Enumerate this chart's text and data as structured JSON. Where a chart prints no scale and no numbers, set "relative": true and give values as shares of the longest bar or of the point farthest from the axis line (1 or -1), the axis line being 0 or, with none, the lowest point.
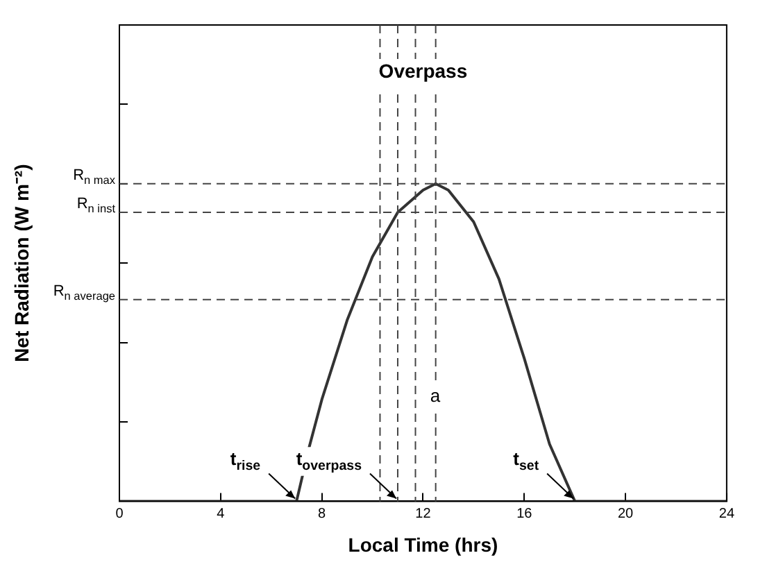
{
  "chart_data": {
    "type": "line",
    "relative": true,
    "xlabel": "Local Time (hrs)",
    "ylabel": "Net Radiation (W m⁻²)",
    "x": [
      0,
      7,
      7.5,
      8,
      9,
      10,
      11,
      12,
      12.5,
      13,
      14,
      15,
      16,
      17,
      18,
      24
    ],
    "series": [
      {
        "color": "#333333",
        "values": [
          0,
          0,
          0.17,
          0.32,
          0.57,
          0.77,
          0.91,
          0.98,
          1,
          0.98,
          0.88,
          0.7,
          0.45,
          0.18,
          0,
          0
        ]
      }
    ],
    "xlim": [
      0,
      24
    ],
    "xticks": [
      0,
      4,
      8,
      12,
      16,
      20,
      24
    ],
    "grid": false,
    "legend": false,
    "marker": "none",
    "line_style": "solid",
    "tick_labels": "x",
    "ref_lines": [
      {
        "axis": "y",
        "value": 1,
        "label": "R$_{n max}$",
        "line_style": "dashed"
      },
      {
        "axis": "y",
        "value": 0.91,
        "label": "R$_{n inst}$",
        "line_style": "dashed"
      },
      {
        "axis": "y",
        "value": 0.635,
        "label": "R$_{n average}$",
        "line_style": "dashed"
      },
      {
        "axis": "x",
        "value": 11,
        "line_style": "dashed"
      },
      {
        "axis": "x",
        "value": 12.5,
        "line_style": "dashed"
      },
      {
        "axis": "x",
        "value": 10.3,
        "line_style": "dashed"
      },
      {
        "axis": "x",
        "value": 11.7,
        "line_style": "dashed"
      }
    ],
    "annotations": [
      "Overpass",
      "a",
      {
        "text": "t$_{rise}$",
        "x": 7,
        "y": 0
      },
      {
        "text": "t$_{overpass}$",
        "x": 11,
        "y": 0
      },
      {
        "text": "t$_{set}$",
        "x": 18,
        "y": 0
      }
    ]
  }
}
